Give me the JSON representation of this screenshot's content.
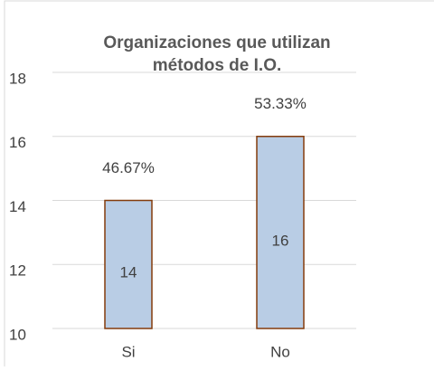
{
  "chart_data": {
    "type": "bar",
    "title": [
      "Organizaciones que utilizan",
      "métodos de I.O."
    ],
    "categories": [
      "Si",
      "No"
    ],
    "values": [
      14,
      16
    ],
    "annotations": [
      "46.67%",
      "53.33%"
    ],
    "color": "#b9cde5",
    "edge_color": "#843c0c",
    "ylim": [
      10,
      18
    ],
    "yticks": [
      10,
      12,
      14,
      16,
      18
    ],
    "grid": true
  }
}
